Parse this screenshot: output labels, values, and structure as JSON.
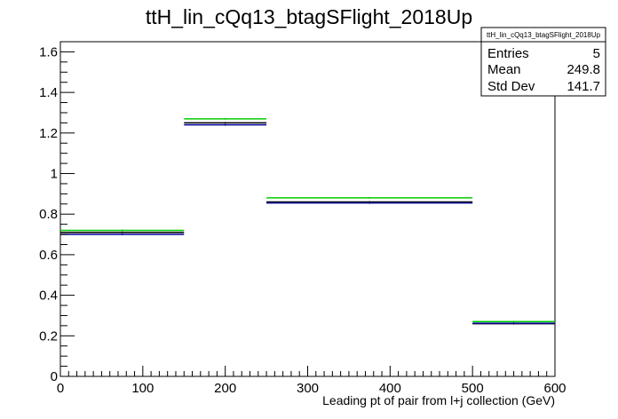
{
  "chart_data": {
    "type": "step",
    "title": "ttH_lin_cQq13_btagSFlight_2018Up",
    "xlabel": "Leading pt of pair from l+j collection (GeV)",
    "ylabel": "",
    "xlim": [
      0,
      600
    ],
    "ylim": [
      0,
      1.65
    ],
    "x_ticks": [
      0,
      100,
      200,
      300,
      400,
      500,
      600
    ],
    "y_ticks": [
      0,
      0.2,
      0.4,
      0.6,
      0.8,
      1,
      1.2,
      1.4,
      1.6
    ],
    "bin_edges": [
      0,
      150,
      250,
      500,
      600
    ],
    "series": [
      {
        "color": "#00cc00",
        "values": [
          0.72,
          1.27,
          0.88,
          0.27
        ]
      },
      {
        "color": "#000000",
        "values": [
          0.71,
          1.25,
          0.86,
          0.26
        ]
      },
      {
        "color": "#000099",
        "values": [
          0.7,
          1.24,
          0.855,
          0.262
        ]
      }
    ],
    "stats": {
      "name": "ttH_lin_cQq13_btagSFlight_2018Up",
      "rows": [
        {
          "label": "Entries",
          "value": "5"
        },
        {
          "label": "Mean",
          "value": "249.8"
        },
        {
          "label": "Std Dev",
          "value": "141.7"
        }
      ]
    },
    "grid": false,
    "legend": "none"
  }
}
